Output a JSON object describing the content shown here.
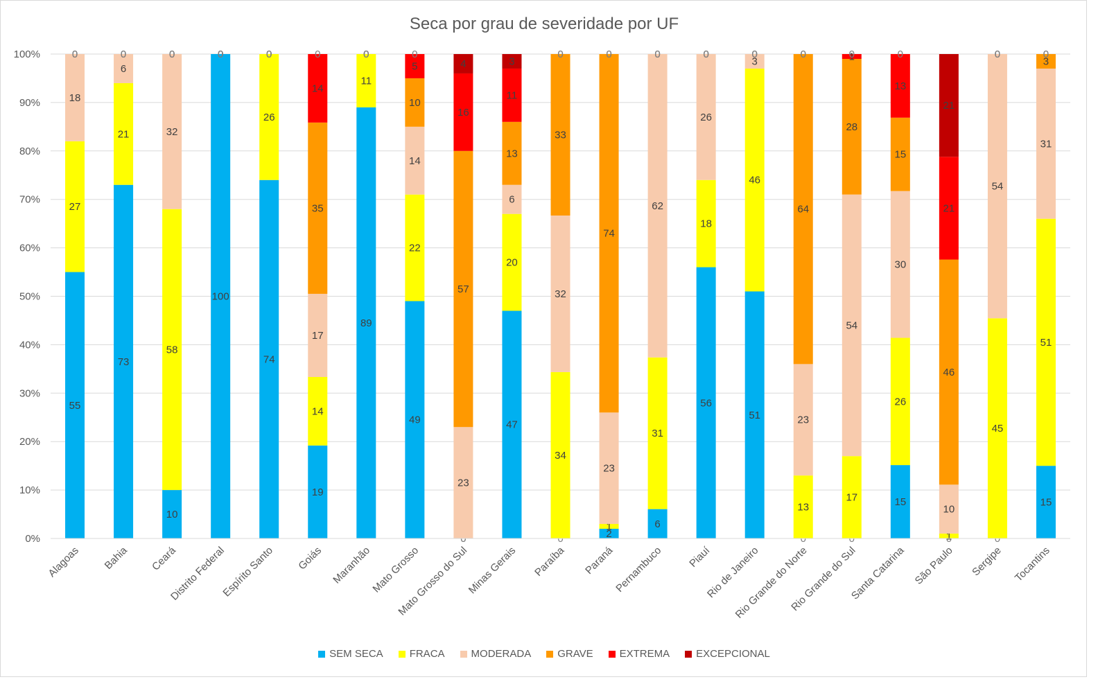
{
  "chart_data": {
    "type": "bar",
    "stacked": "percent",
    "title": "Seca por grau de severidade por UF",
    "xlabel": "",
    "ylabel": "",
    "ylim": [
      0,
      100
    ],
    "y_ticks": [
      "0%",
      "10%",
      "20%",
      "30%",
      "40%",
      "50%",
      "60%",
      "70%",
      "80%",
      "90%",
      "100%"
    ],
    "legend_position": "bottom",
    "categories": [
      "Alagoas",
      "Bahia",
      "Ceará",
      "Distrito Federal",
      "Espírito Santo",
      "Goiás",
      "Maranhão",
      "Mato Grosso",
      "Mato Grosso do Sul",
      "Minas Gerais",
      "Paraíba",
      "Paraná",
      "Pernambuco",
      "Piauí",
      "Rio de Janeiro",
      "Rio Grande do Norte",
      "Rio Grande do Sul",
      "Santa Catarina",
      "São Paulo",
      "Sergipe",
      "Tocantins"
    ],
    "series": [
      {
        "name": "SEM SECA",
        "color": "#00b0f0",
        "label_color": "#404040",
        "values": [
          55,
          73,
          10,
          100,
          74,
          19,
          89,
          49,
          0,
          47,
          0,
          2,
          6,
          56,
          51,
          0,
          0,
          15,
          0,
          0,
          15
        ]
      },
      {
        "name": "FRACA",
        "color": "#ffff00",
        "label_color": "#404040",
        "values": [
          27,
          21,
          58,
          0,
          26,
          14,
          11,
          22,
          0,
          20,
          34,
          1,
          31,
          18,
          46,
          13,
          17,
          26,
          1,
          45,
          51
        ]
      },
      {
        "name": "MODERADA",
        "color": "#f8cbad",
        "label_color": "#404040",
        "values": [
          18,
          6,
          32,
          0,
          0,
          17,
          0,
          14,
          23,
          6,
          32,
          23,
          62,
          26,
          3,
          23,
          54,
          30,
          10,
          54,
          31
        ]
      },
      {
        "name": "GRAVE",
        "color": "#ff9900",
        "label_color": "#404040",
        "values": [
          0,
          0,
          0,
          0,
          0,
          35,
          0,
          10,
          57,
          13,
          33,
          74,
          0,
          0,
          0,
          64,
          28,
          15,
          46,
          0,
          3
        ]
      },
      {
        "name": "EXTREMA",
        "color": "#ff0000",
        "label_color": "#404040",
        "values": [
          0,
          0,
          0,
          0,
          0,
          14,
          0,
          5,
          16,
          11,
          0,
          0,
          0,
          0,
          0,
          0,
          1,
          13,
          21,
          0,
          0
        ]
      },
      {
        "name": "EXCEPCIONAL",
        "color": "#c00000",
        "label_color": "#404040",
        "values": [
          0,
          0,
          0,
          0,
          0,
          0,
          0,
          0,
          4,
          3,
          0,
          0,
          0,
          0,
          0,
          0,
          0,
          0,
          21,
          0,
          0
        ]
      }
    ]
  }
}
